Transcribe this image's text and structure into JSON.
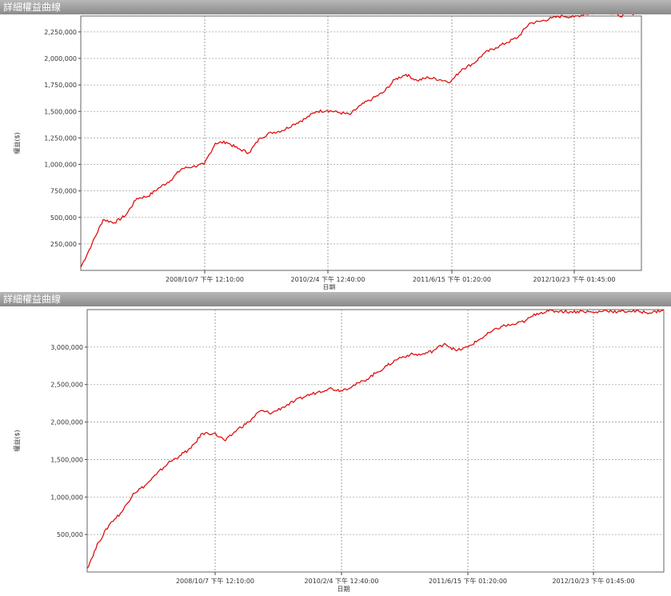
{
  "colors": {
    "line": "#e01010",
    "grid": "#999999",
    "titlebar": "#9a9a9a"
  },
  "chart_data": [
    {
      "type": "line",
      "title": "詳細權益曲線",
      "xlabel": "日期",
      "ylabel": "權益($)",
      "grid": true,
      "x_ticks": [
        "2008/10/7 下午 12:10:00",
        "2010/2/4 下午 12:40:00",
        "2011/6/15 下午 01:20:00",
        "2012/10/23 下午 01:45:00"
      ],
      "y_ticks": [
        "250,000",
        "500,000",
        "750,000",
        "1,000,000",
        "1,250,000",
        "1,500,000",
        "1,750,000",
        "2,000,000",
        "2,250,000"
      ],
      "ylim": [
        0,
        2400000
      ],
      "series": [
        {
          "x": [
            0,
            0.02,
            0.04,
            0.06,
            0.08,
            0.1,
            0.12,
            0.14,
            0.16,
            0.18,
            0.2,
            0.22,
            0.24,
            0.26,
            0.28,
            0.3,
            0.32,
            0.34,
            0.36,
            0.38,
            0.4,
            0.42,
            0.44,
            0.46,
            0.48,
            0.5,
            0.52,
            0.54,
            0.56,
            0.58,
            0.6,
            0.62,
            0.64,
            0.66,
            0.68,
            0.7,
            0.72,
            0.74,
            0.76,
            0.78,
            0.8,
            0.82,
            0.84,
            0.86,
            0.88,
            0.9,
            0.92,
            0.94,
            0.96,
            0.98,
            1.0
          ],
          "values": [
            30000,
            250000,
            480000,
            450000,
            520000,
            680000,
            700000,
            780000,
            850000,
            960000,
            980000,
            1000000,
            1200000,
            1210000,
            1150000,
            1110000,
            1250000,
            1300000,
            1320000,
            1380000,
            1430000,
            1500000,
            1510000,
            1490000,
            1470000,
            1560000,
            1620000,
            1680000,
            1800000,
            1850000,
            1790000,
            1820000,
            1800000,
            1780000,
            1900000,
            1950000,
            2050000,
            2100000,
            2150000,
            2200000,
            2330000,
            2350000,
            2380000,
            2400000,
            2390000,
            2420000,
            2430000,
            2440000,
            2400000,
            2420000,
            2440000
          ]
        }
      ]
    },
    {
      "type": "line",
      "title": "詳細權益曲線",
      "xlabel": "日期",
      "ylabel": "權益($)",
      "grid": true,
      "x_ticks": [
        "2008/10/7 下午 12:10:00",
        "2010/2/4 下午 12:40:00",
        "2011/6/15 下午 01:20:00",
        "2012/10/23 下午 01:45:00"
      ],
      "y_ticks": [
        "500,000",
        "1,000,000",
        "1,500,000",
        "2,000,000",
        "2,500,000",
        "3,000,000"
      ],
      "ylim": [
        0,
        3500000
      ],
      "series": [
        {
          "x": [
            0,
            0.02,
            0.04,
            0.06,
            0.08,
            0.1,
            0.12,
            0.14,
            0.16,
            0.18,
            0.2,
            0.22,
            0.24,
            0.26,
            0.28,
            0.3,
            0.32,
            0.34,
            0.36,
            0.38,
            0.4,
            0.42,
            0.44,
            0.46,
            0.48,
            0.5,
            0.52,
            0.54,
            0.56,
            0.58,
            0.6,
            0.62,
            0.64,
            0.66,
            0.68,
            0.7,
            0.72,
            0.74,
            0.76,
            0.78,
            0.8,
            0.82,
            0.84,
            0.86,
            0.88,
            0.9,
            0.92,
            0.94,
            0.96,
            0.98,
            1.0
          ],
          "values": [
            50000,
            400000,
            650000,
            800000,
            1050000,
            1150000,
            1300000,
            1450000,
            1550000,
            1650000,
            1850000,
            1850000,
            1750000,
            1900000,
            2000000,
            2150000,
            2120000,
            2200000,
            2280000,
            2350000,
            2400000,
            2450000,
            2420000,
            2480000,
            2550000,
            2650000,
            2750000,
            2850000,
            2900000,
            2900000,
            2950000,
            3050000,
            2950000,
            3000000,
            3100000,
            3200000,
            3280000,
            3300000,
            3350000,
            3450000,
            3480000,
            3480000,
            3470000,
            3480000,
            3460000,
            3490000,
            3470000,
            3480000,
            3470000,
            3460000,
            3500000
          ]
        }
      ]
    }
  ]
}
